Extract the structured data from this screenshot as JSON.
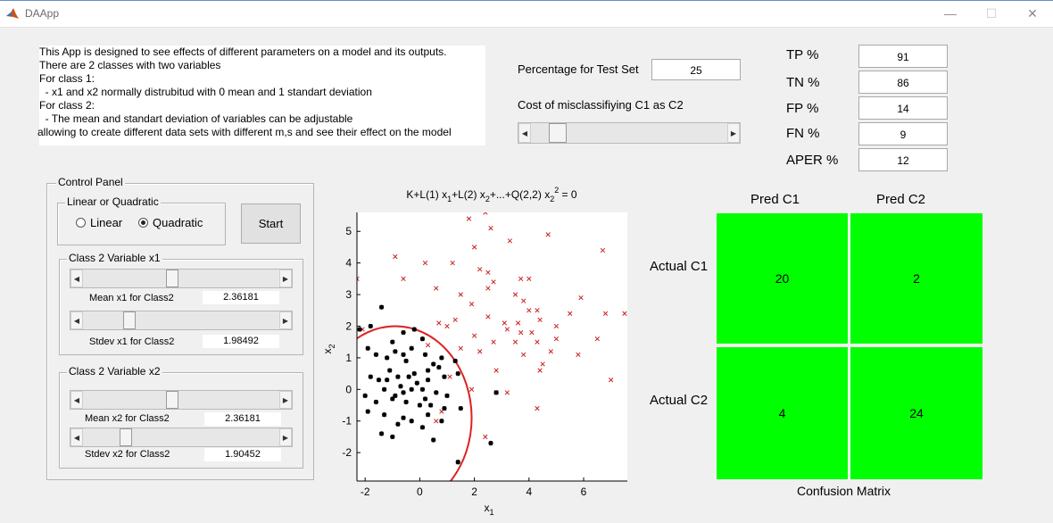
{
  "window": {
    "title": "DAApp",
    "min_icon": "minimize-icon",
    "max_icon": "maximize-icon",
    "close_icon": "close-icon"
  },
  "description": [
    "This App is designed to see effects of different parameters on a model and its outputs.",
    "There are 2 classes with two variables",
    "For class 1:",
    "  - x1 and x2 normally distrubitud with 0 mean and 1 standart deviation",
    "For class 2:",
    "  - The mean and standart deviation of variables can be adjustable",
    "allowing to create different data sets with different m,s and see their effect on the model"
  ],
  "test_set": {
    "label": "Percentage for Test Set",
    "value": "25"
  },
  "cost": {
    "label": "Cost of misclassifiying C1 as C2",
    "slider_fraction": 0.1
  },
  "metrics": [
    {
      "label": "TP %",
      "value": "91"
    },
    {
      "label": "TN %",
      "value": "86"
    },
    {
      "label": "FP %",
      "value": "14"
    },
    {
      "label": "FN %",
      "value": "9"
    },
    {
      "label": "APER %",
      "value": "12"
    }
  ],
  "control_panel": {
    "title": "Control Panel",
    "model_group": {
      "title": "Linear or Quadratic",
      "options": [
        "Linear",
        "Quadratic"
      ],
      "selected": "Quadratic"
    },
    "start_label": "Start",
    "class2_x1": {
      "title": "Class 2 Variable x1",
      "mean_label": "Mean x1 for Class2",
      "mean_value": "2.36181",
      "mean_fraction": 0.45,
      "std_label": "Stdev x1 for Class2",
      "std_value": "1.98492",
      "std_fraction": 0.22
    },
    "class2_x2": {
      "title": "Class 2 Variable x2",
      "mean_label": "Mean x2 for Class2",
      "mean_value": "2.36181",
      "mean_fraction": 0.45,
      "std_label": "Stdev x2 for Class2",
      "std_value": "1.90452",
      "std_fraction": 0.2
    }
  },
  "chart_data": {
    "type": "scatter",
    "title": "K+L(1) x1+L(2) x2+...+Q(2,2) x2^2 = 0",
    "xlabel": "x1",
    "ylabel": "x2",
    "xlim": [
      -2.3,
      7.6
    ],
    "ylim": [
      -2.9,
      5.6
    ],
    "xticks": [
      "-2",
      "0",
      "2",
      "4",
      "6"
    ],
    "yticks": [
      "-2",
      "-1",
      "0",
      "1",
      "2",
      "3",
      "4",
      "5"
    ],
    "series": [
      {
        "marker": "x",
        "color": "#cc2222",
        "points": [
          [
            2.4,
            5.6
          ],
          [
            1.8,
            5.4
          ],
          [
            2.6,
            5.1
          ],
          [
            3.3,
            4.7
          ],
          [
            4.7,
            4.9
          ],
          [
            2.0,
            4.5
          ],
          [
            6.7,
            4.4
          ],
          [
            -0.9,
            4.2
          ],
          [
            0.2,
            4.0
          ],
          [
            1.2,
            4.0
          ],
          [
            2.2,
            3.8
          ],
          [
            2.5,
            3.7
          ],
          [
            -0.6,
            3.5
          ],
          [
            3.7,
            3.5
          ],
          [
            2.7,
            3.4
          ],
          [
            4.0,
            3.5
          ],
          [
            0.6,
            3.2
          ],
          [
            2.5,
            3.2
          ],
          [
            3.5,
            3.0
          ],
          [
            1.5,
            3.0
          ],
          [
            5.9,
            2.9
          ],
          [
            1.9,
            2.7
          ],
          [
            3.8,
            2.8
          ],
          [
            4.0,
            2.5
          ],
          [
            5.5,
            2.4
          ],
          [
            7.5,
            2.4
          ],
          [
            6.8,
            2.4
          ],
          [
            4.3,
            2.5
          ],
          [
            2.5,
            2.3
          ],
          [
            1.3,
            2.2
          ],
          [
            0.7,
            2.1
          ],
          [
            3.1,
            2.1
          ],
          [
            3.6,
            2.1
          ],
          [
            4.4,
            2.2
          ],
          [
            5.0,
            2.0
          ],
          [
            1.0,
            2.0
          ],
          [
            3.2,
            1.9
          ],
          [
            3.7,
            1.8
          ],
          [
            4.1,
            1.8
          ],
          [
            2.0,
            1.7
          ],
          [
            5.0,
            1.6
          ],
          [
            6.5,
            1.6
          ],
          [
            2.7,
            1.5
          ],
          [
            3.5,
            1.5
          ],
          [
            4.3,
            1.5
          ],
          [
            0.3,
            1.4
          ],
          [
            1.5,
            1.3
          ],
          [
            2.2,
            1.2
          ],
          [
            3.8,
            1.1
          ],
          [
            -2.1,
            1.9
          ],
          [
            4.5,
            0.8
          ],
          [
            5.8,
            1.1
          ],
          [
            2.8,
            0.6
          ],
          [
            4.4,
            0.6
          ],
          [
            1.1,
            0.4
          ],
          [
            1.9,
            0.0
          ],
          [
            2.8,
            -0.1
          ],
          [
            3.2,
            -0.1
          ],
          [
            4.3,
            -0.6
          ],
          [
            7.0,
            0.3
          ],
          [
            0.6,
            -1.0
          ],
          [
            0.8,
            -0.7
          ],
          [
            2.4,
            -1.5
          ],
          [
            -2.3,
            3.5
          ],
          [
            4.8,
            1.2
          ]
        ]
      },
      {
        "marker": "*",
        "color": "#000000",
        "points": [
          [
            -0.2,
            1.9
          ],
          [
            -1.4,
            2.6
          ],
          [
            -1.8,
            2.0
          ],
          [
            -2.2,
            1.9
          ],
          [
            -0.6,
            1.8
          ],
          [
            -1.0,
            1.5
          ],
          [
            0.1,
            1.6
          ],
          [
            -0.3,
            1.3
          ],
          [
            -0.9,
            1.2
          ],
          [
            -0.6,
            1.1
          ],
          [
            0.2,
            1.1
          ],
          [
            -1.9,
            1.3
          ],
          [
            -1.6,
            1.1
          ],
          [
            -1.2,
            1.0
          ],
          [
            -0.5,
            0.9
          ],
          [
            0.8,
            1.0
          ],
          [
            1.3,
            0.9
          ],
          [
            0.3,
            0.6
          ],
          [
            0.5,
            0.8
          ],
          [
            -0.2,
            0.5
          ],
          [
            -1.1,
            0.6
          ],
          [
            -1.8,
            0.4
          ],
          [
            -1.5,
            0.3
          ],
          [
            -0.8,
            0.4
          ],
          [
            -0.1,
            0.2
          ],
          [
            0.3,
            0.3
          ],
          [
            0.9,
            0.4
          ],
          [
            1.4,
            0.5
          ],
          [
            -1.3,
            0.0
          ],
          [
            -0.7,
            0.1
          ],
          [
            -0.3,
            0.0
          ],
          [
            0.1,
            0.0
          ],
          [
            0.6,
            -0.1
          ],
          [
            1.0,
            -0.2
          ],
          [
            -2.0,
            -0.2
          ],
          [
            -1.6,
            -0.4
          ],
          [
            -1.0,
            -0.3
          ],
          [
            -0.5,
            -0.4
          ],
          [
            0.0,
            -0.5
          ],
          [
            0.4,
            -0.5
          ],
          [
            0.9,
            -0.6
          ],
          [
            1.5,
            -0.6
          ],
          [
            -1.9,
            -0.7
          ],
          [
            -1.3,
            -0.8
          ],
          [
            -0.6,
            -0.9
          ],
          [
            0.3,
            -0.8
          ],
          [
            0.8,
            -1.0
          ],
          [
            -1.4,
            -1.4
          ],
          [
            -0.8,
            -1.1
          ],
          [
            0.1,
            -1.2
          ],
          [
            0.5,
            -1.6
          ],
          [
            -0.3,
            -1.0
          ],
          [
            -1.0,
            -1.5
          ],
          [
            2.8,
            -0.1
          ],
          [
            2.6,
            -1.7
          ],
          [
            1.4,
            -2.3
          ],
          [
            -0.4,
            0.4
          ],
          [
            -0.9,
            -0.2
          ],
          [
            0.2,
            -0.3
          ],
          [
            0.7,
            0.7
          ],
          [
            -0.6,
            -0.1
          ],
          [
            -1.2,
            0.3
          ]
        ]
      }
    ],
    "boundary": {
      "color": "#dd2222",
      "shape": "ellipse",
      "center": [
        -0.9,
        -0.9
      ],
      "radii": [
        2.8,
        2.9
      ]
    }
  },
  "confusion_matrix": {
    "title": "Confusion Matrix",
    "col_headers": [
      "Pred C1",
      "Pred C2"
    ],
    "row_headers": [
      "Actual C1",
      "Actual C2"
    ],
    "values": [
      [
        "20",
        "2"
      ],
      [
        "4",
        "24"
      ]
    ],
    "cell_color": "#00ff00"
  }
}
